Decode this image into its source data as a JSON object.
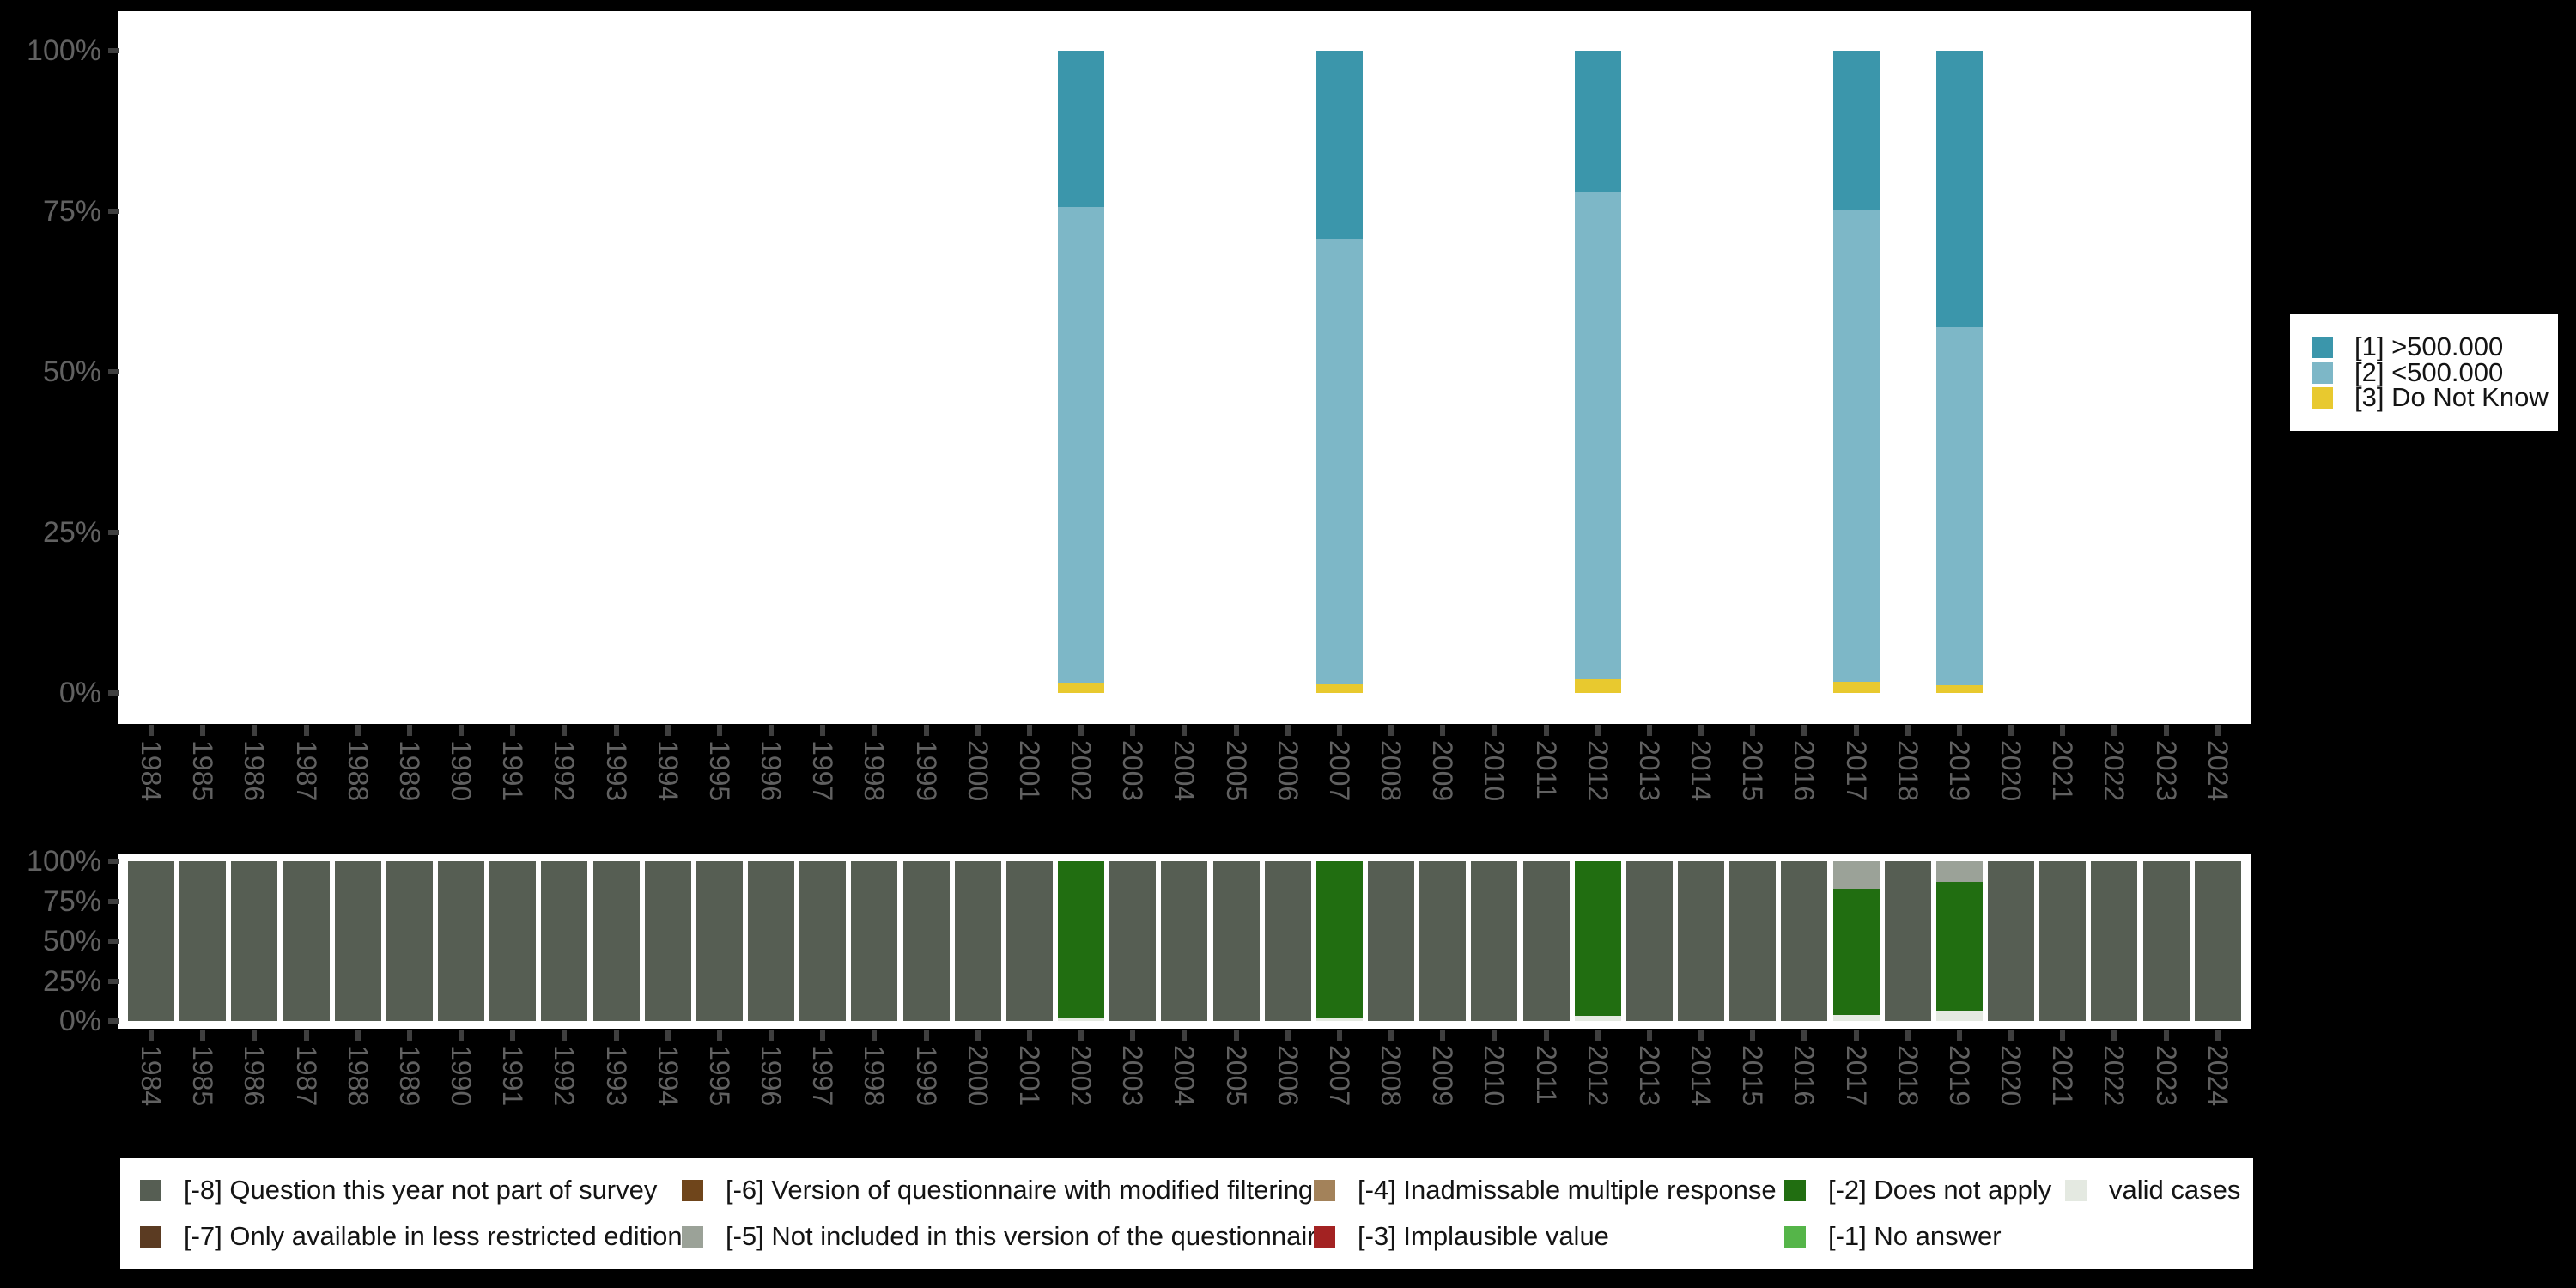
{
  "figure": {
    "background": "#000000",
    "plot_background": "#ffffff",
    "axis_text_color": "#616161",
    "tick_color": "#3f3f3f",
    "legend_background": "#ffffff",
    "legend_text_color": "#141414"
  },
  "chart_data": [
    {
      "id": "answers",
      "type": "bar",
      "stacked": true,
      "units": "percent",
      "title": "",
      "xlabel": "",
      "ylabel": "",
      "ylim": [
        0,
        100
      ],
      "grid": false,
      "legend_position": "right",
      "x": [
        1984,
        1985,
        1986,
        1987,
        1988,
        1989,
        1990,
        1991,
        1992,
        1993,
        1994,
        1995,
        1996,
        1997,
        1998,
        1999,
        2000,
        2001,
        2002,
        2003,
        2004,
        2005,
        2006,
        2007,
        2008,
        2009,
        2010,
        2011,
        2012,
        2013,
        2014,
        2015,
        2016,
        2017,
        2018,
        2019,
        2020,
        2021,
        2022,
        2023,
        2024
      ],
      "ytick_labels": [
        "0%",
        "25%",
        "50%",
        "75%",
        "100%"
      ],
      "ytick_values": [
        0,
        25,
        50,
        75,
        100
      ],
      "survey_years": [
        2002,
        2007,
        2012,
        2017,
        2019
      ],
      "series": [
        {
          "name": "[1] >500.000",
          "color": "#3b96ab",
          "values": {
            "2002": 24.3,
            "2007": 29.3,
            "2012": 22.0,
            "2017": 24.7,
            "2019": 43.0
          }
        },
        {
          "name": "[2] <500.000",
          "color": "#7db7c7",
          "values": {
            "2002": 74.1,
            "2007": 69.4,
            "2012": 75.8,
            "2017": 73.6,
            "2019": 55.8
          }
        },
        {
          "name": "[3] Do Not Know",
          "color": "#e8c92f",
          "values": {
            "2002": 1.6,
            "2007": 1.3,
            "2012": 2.2,
            "2017": 1.7,
            "2019": 1.2
          }
        }
      ]
    },
    {
      "id": "missing-values",
      "type": "bar",
      "stacked": true,
      "units": "percent",
      "title": "",
      "xlabel": "",
      "ylabel": "",
      "ylim": [
        0,
        100
      ],
      "grid": false,
      "legend_position": "bottom",
      "x": [
        1984,
        1985,
        1986,
        1987,
        1988,
        1989,
        1990,
        1991,
        1992,
        1993,
        1994,
        1995,
        1996,
        1997,
        1998,
        1999,
        2000,
        2001,
        2002,
        2003,
        2004,
        2005,
        2006,
        2007,
        2008,
        2009,
        2010,
        2011,
        2012,
        2013,
        2014,
        2015,
        2016,
        2017,
        2018,
        2019,
        2020,
        2021,
        2022,
        2023,
        2024
      ],
      "ytick_labels": [
        "0%",
        "25%",
        "50%",
        "75%",
        "100%"
      ],
      "ytick_values": [
        0,
        25,
        50,
        75,
        100
      ],
      "series": [
        {
          "name": "[-5] Not included in this version of the questionnaire",
          "color": "#9ba298",
          "values": {
            "2017": 17.0,
            "2019": 13.0
          }
        },
        {
          "name": "[-2] Does not apply",
          "color": "#216e11",
          "values": {
            "2002": 98.4,
            "2007": 98.2,
            "2012": 97.0,
            "2017": 79.0,
            "2019": 80.5
          }
        },
        {
          "name": "valid cases",
          "color": "#e4e9e1",
          "values": {
            "2002": 1.6,
            "2007": 1.8,
            "2012": 3.0,
            "2017": 4.0,
            "2019": 6.5
          }
        },
        {
          "name": "[-8] Question this year not part of survey",
          "color": "#565e53",
          "values": {
            "1984": 100,
            "1985": 100,
            "1986": 100,
            "1987": 100,
            "1988": 100,
            "1989": 100,
            "1990": 100,
            "1991": 100,
            "1992": 100,
            "1993": 100,
            "1994": 100,
            "1995": 100,
            "1996": 100,
            "1997": 100,
            "1998": 100,
            "1999": 100,
            "2000": 100,
            "2001": 100,
            "2003": 100,
            "2004": 100,
            "2005": 100,
            "2006": 100,
            "2008": 100,
            "2009": 100,
            "2010": 100,
            "2011": 100,
            "2013": 100,
            "2014": 100,
            "2015": 100,
            "2016": 100,
            "2018": 100,
            "2020": 100,
            "2021": 100,
            "2022": 100,
            "2023": 100,
            "2024": 100
          }
        }
      ]
    }
  ],
  "missing_legend": {
    "items": [
      {
        "label": "[-8] Question this year not part of survey",
        "color": "#565e53"
      },
      {
        "label": "[-7] Only available in less restricted edition",
        "color": "#5b3b22"
      },
      {
        "label": "[-6] Version of questionnaire with modified filtering",
        "color": "#6f451b"
      },
      {
        "label": "[-5] Not included in this version of the questionnaire",
        "color": "#9ba298"
      },
      {
        "label": "[-4] Inadmissable multiple response",
        "color": "#a3825a"
      },
      {
        "label": "[-3] Implausible value",
        "color": "#a32222"
      },
      {
        "label": "[-2] Does not apply",
        "color": "#216e11"
      },
      {
        "label": "[-1] No answer",
        "color": "#55b549"
      },
      {
        "label": "valid cases",
        "color": "#e4e9e1"
      }
    ]
  }
}
